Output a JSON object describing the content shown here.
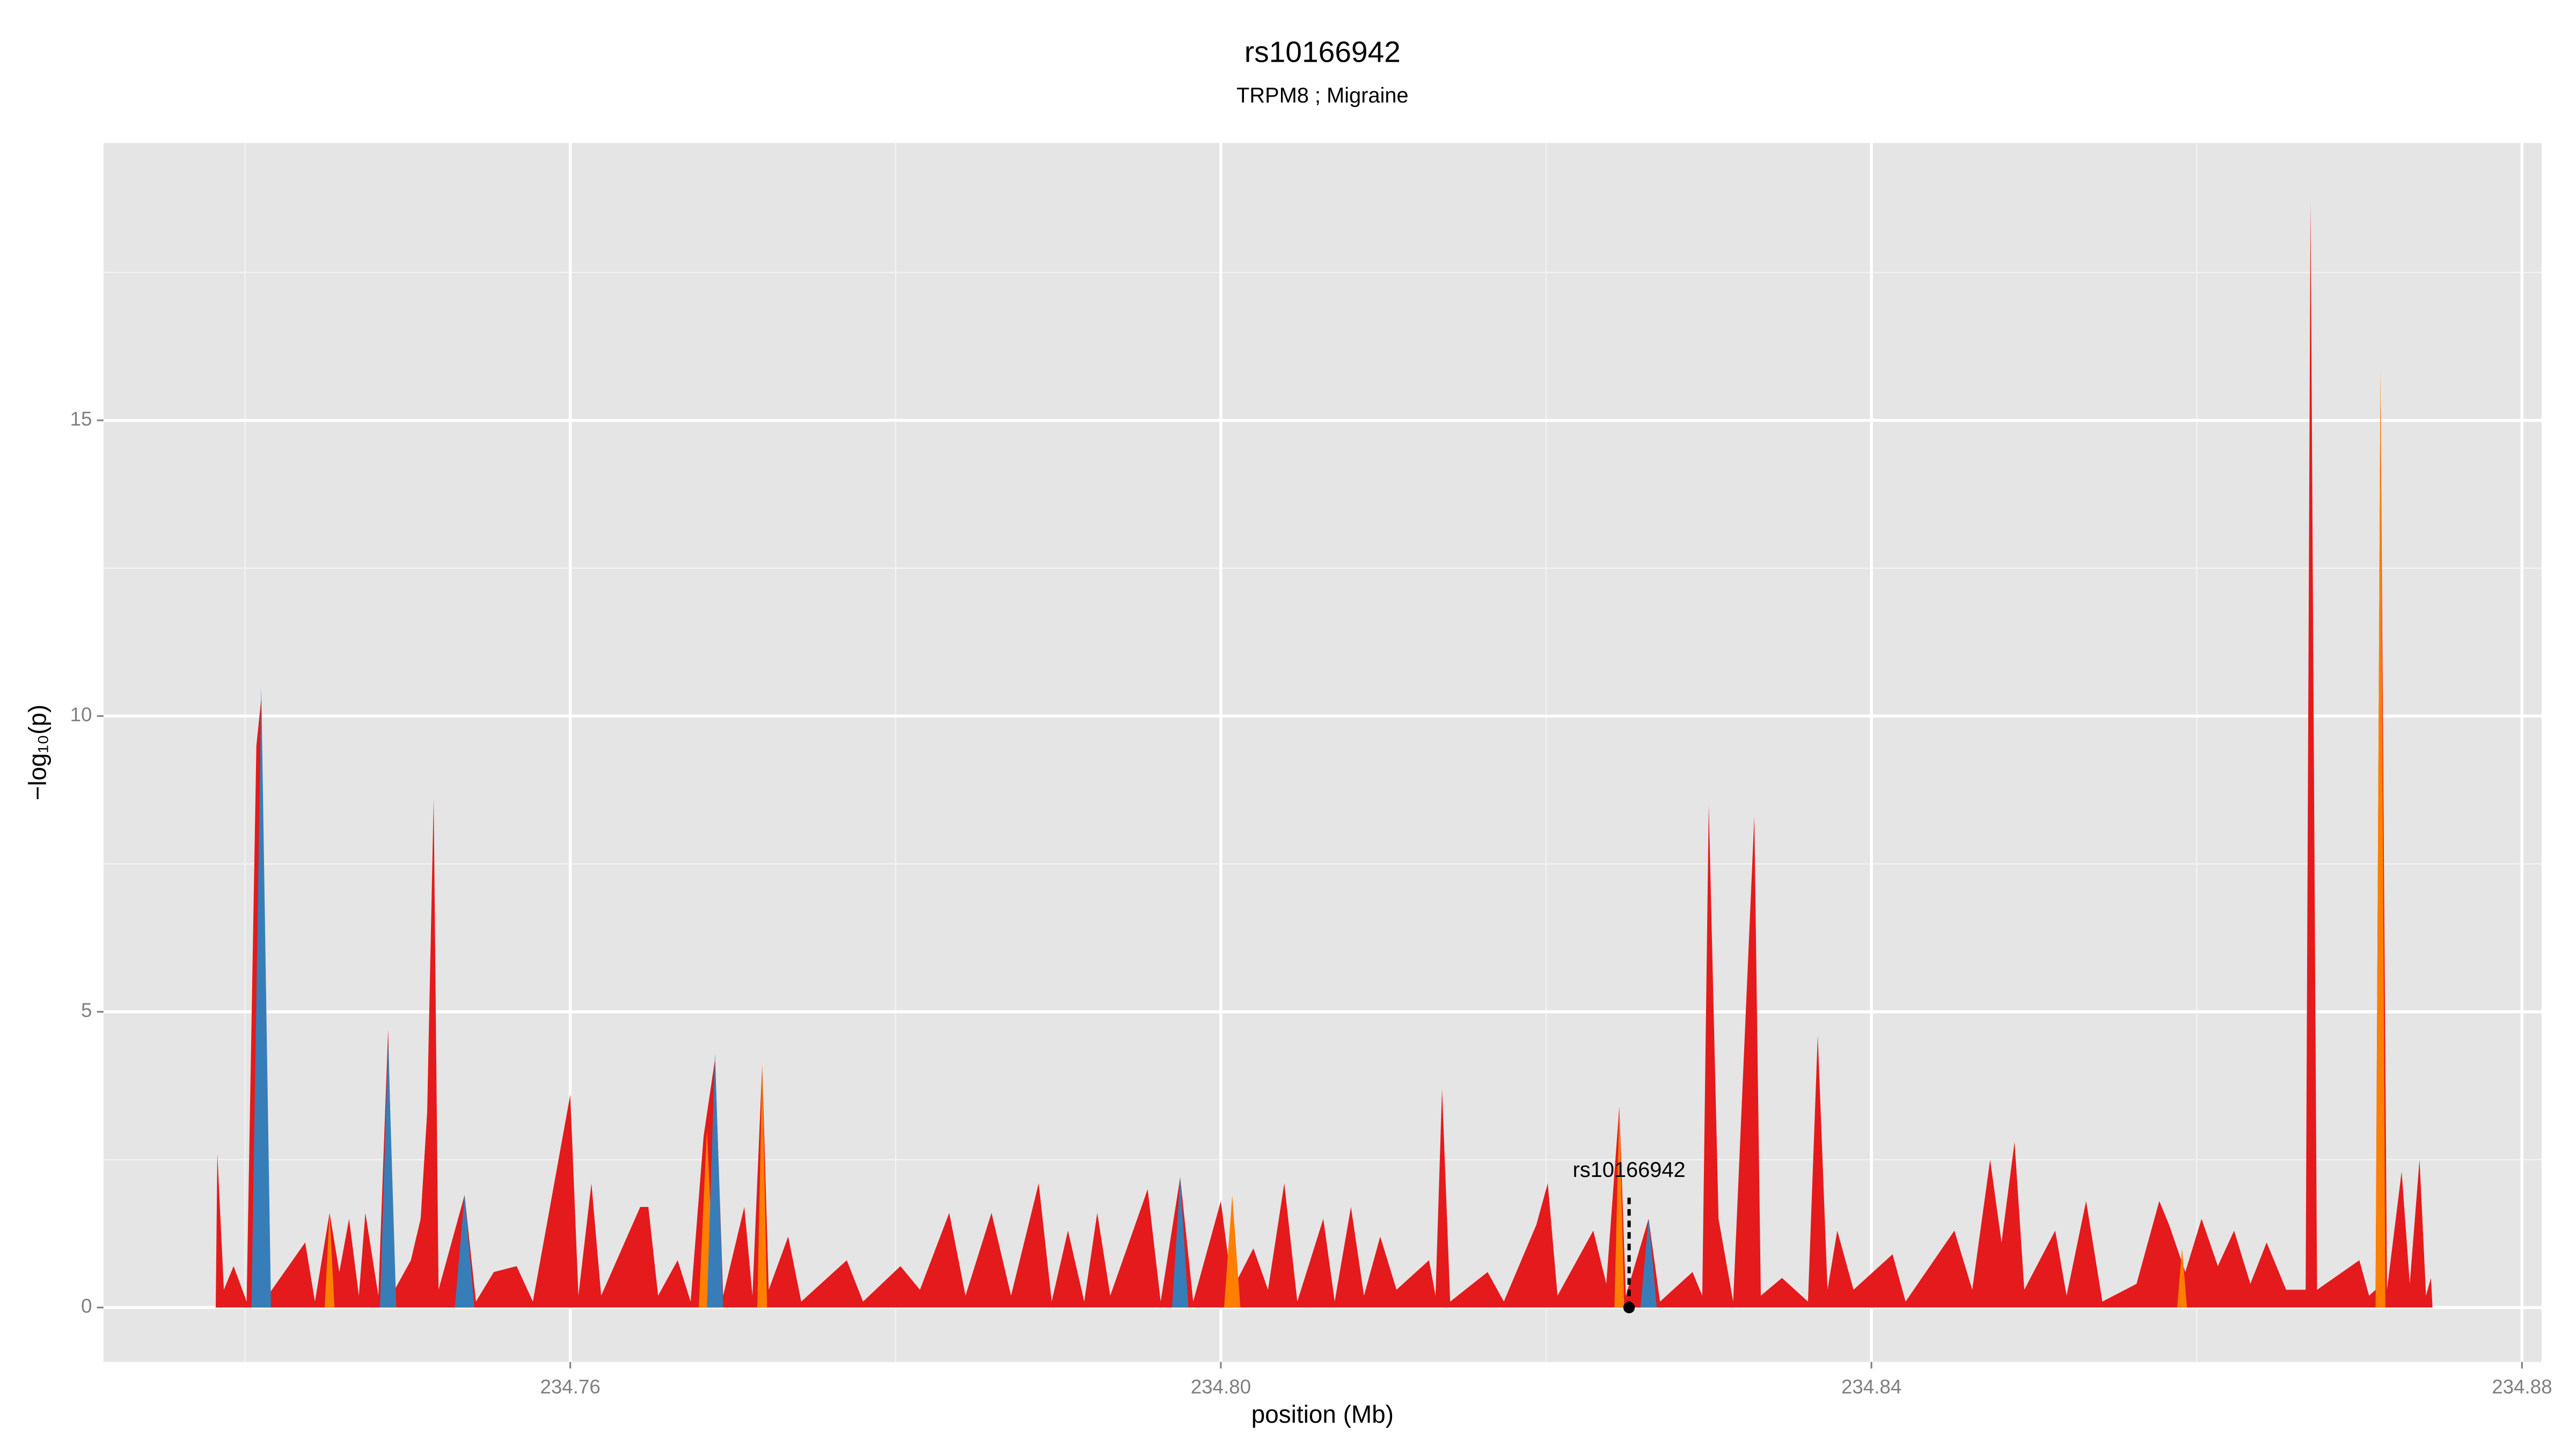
{
  "chart_data": {
    "type": "area",
    "title": "rs10166942",
    "subtitle": "TRPM8 ; Migraine",
    "xlabel": "position (Mb)",
    "ylabel": "−log₁₀(p)",
    "xlim": [
      234.7313,
      234.8812
    ],
    "ylim": [
      -0.92,
      19.69
    ],
    "xticks": [
      234.76,
      {
        "value": 234.8,
        "label": "234.80"
      },
      234.84,
      234.88
    ],
    "yticks": [
      0,
      5,
      10,
      15
    ],
    "x_minor_grid": [
      234.74,
      234.78,
      234.82,
      234.86
    ],
    "y_minor_grid": [
      2.5,
      7.5,
      12.5,
      17.5
    ],
    "grid": true,
    "background": "#e5e5e5",
    "series": [
      {
        "color": "#e41a1c",
        "x": [
          234.7382,
          234.7383,
          234.7387,
          234.7393,
          234.7401,
          234.7407,
          234.741,
          234.7414,
          234.7437,
          234.7443,
          234.7452,
          234.7458,
          234.7464,
          234.747,
          234.7474,
          234.7482,
          234.7488,
          234.7492,
          234.7502,
          234.7508,
          234.7512,
          234.7516,
          234.7519,
          234.7535,
          234.7542,
          234.7553,
          234.7567,
          234.7577,
          234.76,
          234.7605,
          234.7613,
          234.7619,
          234.7643,
          234.7648,
          234.7654,
          234.7666,
          234.7674,
          234.7682,
          234.7689,
          234.7694,
          234.7707,
          234.7712,
          234.7718,
          234.7722,
          234.7734,
          234.7742,
          234.777,
          234.778,
          234.7803,
          234.7815,
          234.7833,
          234.7843,
          234.7859,
          234.7871,
          234.7888,
          234.7896,
          234.7906,
          234.7916,
          234.7924,
          234.7932,
          234.7955,
          234.7963,
          234.7975,
          234.7983,
          234.8,
          234.8007,
          234.802,
          234.8029,
          234.8039,
          234.8047,
          234.8063,
          234.807,
          234.808,
          234.8088,
          234.8098,
          234.8108,
          234.8128,
          234.8132,
          234.8136,
          234.8141,
          234.8164,
          234.8174,
          234.8194,
          234.8201,
          234.8207,
          234.8229,
          234.8237,
          234.8245,
          234.8249,
          234.8263,
          234.827,
          234.829,
          234.8296,
          234.83,
          234.8306,
          234.8315,
          234.8328,
          234.8332,
          234.8345,
          234.8361,
          234.8367,
          234.8373,
          234.8379,
          234.8389,
          234.8413,
          234.8421,
          234.8451,
          234.8462,
          234.8473,
          234.848,
          234.8488,
          234.8494,
          234.8513,
          234.852,
          234.8532,
          234.8542,
          234.8563,
          234.8577,
          234.8583,
          234.8593,
          234.8603,
          234.8613,
          234.8623,
          234.8633,
          234.8643,
          234.8655,
          234.8667,
          234.867,
          234.8674,
          234.87,
          234.8706,
          234.871,
          234.8713,
          234.8717,
          234.8726,
          234.8731,
          234.8737,
          234.8741,
          234.8744,
          234.8745
        ],
        "values": [
          0,
          2.6,
          0.3,
          0.7,
          0.1,
          9.5,
          10.3,
          0.2,
          1.1,
          0.1,
          1.6,
          0.6,
          1.5,
          0.2,
          1.6,
          0.2,
          4.7,
          0.3,
          0.8,
          1.5,
          3.3,
          8.6,
          0.3,
          1.9,
          0.1,
          0.6,
          0.7,
          0.1,
          3.6,
          0.2,
          2.1,
          0.2,
          1.7,
          1.7,
          0.2,
          0.8,
          0.1,
          2.9,
          4.2,
          0.2,
          1.7,
          0.2,
          4.1,
          0.3,
          1.2,
          0.1,
          0.8,
          0.1,
          0.7,
          0.3,
          1.6,
          0.2,
          1.6,
          0.2,
          2.1,
          0.1,
          1.3,
          0.1,
          1.6,
          0.2,
          2.0,
          0.1,
          2.2,
          0.1,
          1.8,
          0.3,
          1.0,
          0.3,
          2.1,
          0.1,
          1.5,
          0.1,
          1.7,
          0.2,
          1.2,
          0.3,
          0.8,
          0.2,
          3.7,
          0.1,
          0.6,
          0.1,
          1.4,
          2.1,
          0.2,
          1.3,
          0.4,
          3.4,
          0.2,
          1.5,
          0.1,
          0.6,
          0.2,
          8.5,
          1.5,
          0.1,
          8.3,
          0.2,
          0.5,
          0.1,
          4.6,
          0.3,
          1.3,
          0.3,
          0.9,
          0.1,
          1.3,
          0.3,
          2.5,
          1.1,
          2.8,
          0.3,
          1.3,
          0.2,
          1.8,
          0.1,
          0.4,
          1.8,
          1.4,
          0.6,
          1.5,
          0.7,
          1.3,
          0.4,
          1.1,
          0.3,
          0.3,
          18.7,
          0.3,
          0.8,
          0.2,
          0.3,
          15.7,
          0.3,
          2.3,
          0.4,
          2.5,
          0.2,
          0.5,
          0
        ]
      },
      {
        "color": "#ff7f00",
        "x": [
          234.7449,
          234.7452,
          234.7455,
          234.7679,
          234.7684,
          234.7689,
          234.7715,
          234.7718,
          234.7721,
          234.8002,
          234.8007,
          234.8012,
          234.8242,
          234.8245,
          234.8248,
          234.8588,
          234.8591,
          234.8594,
          234.871,
          234.8713,
          234.8716
        ],
        "values": [
          0,
          1.6,
          0,
          0,
          3.0,
          0,
          0,
          4.1,
          0,
          0,
          1.9,
          0,
          0,
          3.4,
          0,
          0,
          1.0,
          0,
          0,
          15.9,
          0
        ]
      },
      {
        "color": "#377eb8",
        "x": [
          234.7404,
          234.741,
          234.7416,
          234.7483,
          234.7488,
          234.7493,
          234.7529,
          234.7535,
          234.7541,
          234.7684,
          234.7689,
          234.7694,
          234.797,
          234.7975,
          234.798,
          234.8258,
          234.8263,
          234.8268
        ],
        "values": [
          0,
          10.5,
          0,
          0,
          4.5,
          0,
          0,
          1.9,
          0,
          0,
          4.3,
          0,
          0,
          2.2,
          0,
          0,
          1.5,
          0
        ]
      }
    ],
    "annotation": {
      "label": "rs10166942",
      "x": 234.8251,
      "y": 0
    }
  }
}
